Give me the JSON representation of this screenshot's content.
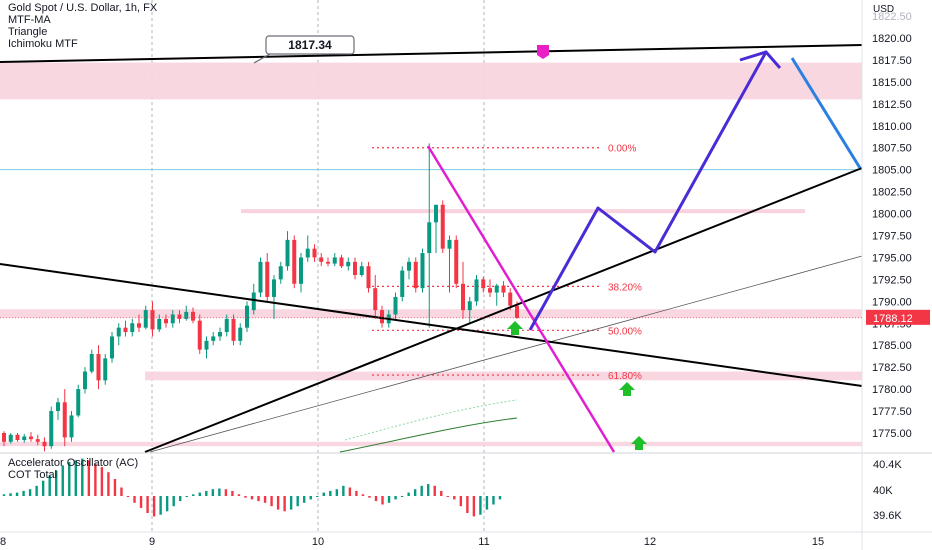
{
  "header": {
    "title": "Gold Spot / U.S. Dollar, 1h, FX",
    "indicators": [
      "MTF-MA",
      "Triangle",
      "Ichimoku MTF"
    ],
    "currency": "USD"
  },
  "oscillator": {
    "title": "Accelerator Oscillator (AC)",
    "subtitle": "COT Total"
  },
  "annotations": {
    "price_callout": "1817.34",
    "current_price": "1788.12"
  },
  "colors": {
    "bull": "#089981",
    "bear": "#f23645",
    "fib": "#f23645",
    "trendline": "#000000",
    "projection_blue": "#4a2bd6",
    "projection_light_blue": "#2a7fe0",
    "projection_magenta": "#e020d0",
    "zone_pink": "#f8d3de",
    "arrow_green": "#1fbf2a",
    "marker_magenta": "#e91ec7",
    "price_label": "#f23645"
  },
  "chart_data": [
    {
      "type": "candlestick",
      "title": "Gold Spot / U.S. Dollar, 1h, FX",
      "ylim": [
        1772.5,
        1823.5
      ],
      "y_ticks": [
        "1822.50",
        "1820.00",
        "1817.50",
        "1815.00",
        "1812.50",
        "1810.00",
        "1807.50",
        "1805.00",
        "1802.50",
        "1800.00",
        "1797.50",
        "1795.00",
        "1792.50",
        "1790.00",
        "1787.50",
        "1785.00",
        "1782.50",
        "1780.00",
        "1777.50",
        "1775.00"
      ],
      "x_ticks": [
        "8",
        "9",
        "10",
        "11",
        "12",
        "15"
      ],
      "xlim": [
        8,
        15.25
      ],
      "current_price": 1788.12,
      "ohlc": [
        [
          1775.0,
          1775.2,
          1773.5,
          1774.0
        ],
        [
          1774.0,
          1775.0,
          1773.8,
          1774.8
        ],
        [
          1774.8,
          1775.0,
          1774.0,
          1774.2
        ],
        [
          1774.2,
          1774.9,
          1773.9,
          1774.6
        ],
        [
          1774.6,
          1775.1,
          1774.0,
          1774.3
        ],
        [
          1774.3,
          1774.8,
          1773.6,
          1774.0
        ],
        [
          1774.0,
          1774.5,
          1772.9,
          1773.5
        ],
        [
          1773.5,
          1778.0,
          1773.2,
          1777.5
        ],
        [
          1777.5,
          1779.0,
          1776.5,
          1778.5
        ],
        [
          1778.5,
          1780.0,
          1773.5,
          1774.5
        ],
        [
          1774.5,
          1777.5,
          1774.0,
          1777.0
        ],
        [
          1777.0,
          1780.5,
          1776.8,
          1780.0
        ],
        [
          1780.0,
          1782.5,
          1779.5,
          1782.0
        ],
        [
          1782.0,
          1784.5,
          1781.8,
          1784.0
        ],
        [
          1784.0,
          1785.0,
          1780.0,
          1781.0
        ],
        [
          1781.0,
          1784.0,
          1780.5,
          1783.5
        ],
        [
          1783.5,
          1786.5,
          1783.0,
          1786.0
        ],
        [
          1786.0,
          1787.5,
          1785.0,
          1787.0
        ],
        [
          1787.0,
          1787.8,
          1786.0,
          1786.5
        ],
        [
          1786.5,
          1788.0,
          1786.0,
          1787.5
        ],
        [
          1787.5,
          1788.5,
          1786.5,
          1787.0
        ],
        [
          1787.0,
          1789.5,
          1786.8,
          1789.0
        ],
        [
          1789.0,
          1790.0,
          1786.0,
          1786.8
        ],
        [
          1786.8,
          1788.5,
          1786.5,
          1788.0
        ],
        [
          1788.0,
          1788.5,
          1787.0,
          1787.5
        ],
        [
          1787.5,
          1789.0,
          1787.0,
          1788.5
        ],
        [
          1788.5,
          1789.0,
          1787.5,
          1788.0
        ],
        [
          1788.0,
          1789.5,
          1787.8,
          1788.8
        ],
        [
          1788.8,
          1789.3,
          1787.5,
          1787.8
        ],
        [
          1787.8,
          1788.5,
          1784.0,
          1784.5
        ],
        [
          1784.5,
          1786.0,
          1783.5,
          1785.5
        ],
        [
          1785.5,
          1786.5,
          1785.0,
          1786.0
        ],
        [
          1786.0,
          1787.0,
          1785.5,
          1786.5
        ],
        [
          1786.5,
          1788.5,
          1786.0,
          1788.0
        ],
        [
          1788.0,
          1788.5,
          1785.0,
          1785.5
        ],
        [
          1785.5,
          1787.5,
          1785.0,
          1787.0
        ],
        [
          1787.0,
          1790.0,
          1786.5,
          1789.5
        ],
        [
          1789.0,
          1792.0,
          1788.5,
          1791.0
        ],
        [
          1791.0,
          1795.0,
          1790.5,
          1794.5
        ],
        [
          1794.5,
          1795.5,
          1790.0,
          1790.5
        ],
        [
          1790.5,
          1793.0,
          1788.0,
          1792.5
        ],
        [
          1792.5,
          1794.5,
          1792.0,
          1794.0
        ],
        [
          1794.0,
          1798.0,
          1793.5,
          1797.0
        ],
        [
          1797.0,
          1797.5,
          1791.5,
          1792.0
        ],
        [
          1792.0,
          1795.5,
          1791.0,
          1795.0
        ],
        [
          1795.0,
          1797.5,
          1794.5,
          1796.0
        ],
        [
          1796.0,
          1796.5,
          1794.5,
          1795.0
        ],
        [
          1795.0,
          1795.5,
          1794.0,
          1794.5
        ],
        [
          1794.5,
          1795.0,
          1794.0,
          1794.3
        ],
        [
          1794.3,
          1795.5,
          1794.0,
          1795.0
        ],
        [
          1795.0,
          1795.3,
          1793.8,
          1794.0
        ],
        [
          1794.0,
          1795.0,
          1793.5,
          1794.5
        ],
        [
          1794.5,
          1795.0,
          1792.5,
          1793.0
        ],
        [
          1793.0,
          1794.5,
          1792.8,
          1794.0
        ],
        [
          1794.0,
          1794.5,
          1791.0,
          1791.5
        ],
        [
          1791.5,
          1793.0,
          1788.0,
          1789.0
        ],
        [
          1789.0,
          1789.5,
          1787.0,
          1787.5
        ],
        [
          1787.5,
          1789.0,
          1787.0,
          1788.5
        ],
        [
          1788.5,
          1791.0,
          1788.0,
          1790.5
        ],
        [
          1790.5,
          1794.0,
          1790.0,
          1793.5
        ],
        [
          1793.5,
          1795.0,
          1792.5,
          1794.5
        ],
        [
          1794.5,
          1795.0,
          1791.0,
          1791.5
        ],
        [
          1791.5,
          1796.0,
          1791.0,
          1795.5
        ],
        [
          1795.5,
          1808.0,
          1787.0,
          1799.0
        ],
        [
          1799.0,
          1801.0,
          1795.5,
          1801.0
        ],
        [
          1801.0,
          1801.5,
          1795.5,
          1796.0
        ],
        [
          1796.0,
          1797.5,
          1791.0,
          1797.0
        ],
        [
          1797.0,
          1797.5,
          1791.5,
          1792.0
        ],
        [
          1792.0,
          1794.5,
          1788.0,
          1789.0
        ],
        [
          1789.0,
          1790.5,
          1787.5,
          1790.0
        ],
        [
          1790.0,
          1793.0,
          1789.5,
          1792.5
        ],
        [
          1792.5,
          1792.8,
          1791.0,
          1791.5
        ],
        [
          1791.5,
          1792.5,
          1790.5,
          1791.0
        ],
        [
          1791.0,
          1792.0,
          1789.5,
          1791.8
        ],
        [
          1791.8,
          1792.3,
          1790.5,
          1791.0
        ],
        [
          1791.0,
          1791.5,
          1789.0,
          1789.5
        ],
        [
          1789.5,
          1790.0,
          1788.0,
          1788.12
        ]
      ],
      "levels": {
        "fibonacci": [
          {
            "label": "0.00%",
            "value": 1807.5
          },
          {
            "label": "38.20%",
            "value": 1791.7
          },
          {
            "label": "50.00%",
            "value": 1786.7
          },
          {
            "label": "61.80%",
            "value": 1781.6
          }
        ],
        "price_callout": 1817.34
      },
      "supply_demand_zones": [
        {
          "from": 1813.0,
          "to": 1817.2
        },
        {
          "from": 1788.1,
          "to": 1789.1
        },
        {
          "from": 1781.0,
          "to": 1782.0
        },
        {
          "from": 1773.5,
          "to": 1774.0
        }
      ],
      "horizontal_lines": [
        1805.0
      ],
      "projection_path": [
        {
          "x": 11.3,
          "y": 1787.0
        },
        {
          "x": 11.7,
          "y": 1800.5
        },
        {
          "x": 12.0,
          "y": 1796.0
        },
        {
          "x": 12.7,
          "y": 1818.0
        }
      ]
    },
    {
      "type": "bar",
      "title": "Accelerator Oscillator (AC)",
      "subtitle": "COT Total",
      "y_ticks": [
        "40.4K",
        "40K",
        "39.6K"
      ],
      "values": [
        0.05,
        0.08,
        0.1,
        0.15,
        0.2,
        0.3,
        0.45,
        0.6,
        0.75,
        0.9,
        1.0,
        1.05,
        1.1,
        1.05,
        0.95,
        0.85,
        0.7,
        0.5,
        0.25,
        0.0,
        -0.2,
        -0.35,
        -0.5,
        -0.6,
        -0.55,
        -0.45,
        -0.3,
        -0.15,
        0.0,
        0.05,
        0.1,
        0.15,
        0.2,
        0.22,
        0.2,
        0.15,
        0.05,
        -0.05,
        -0.1,
        -0.15,
        -0.2,
        -0.3,
        -0.4,
        -0.45,
        -0.4,
        -0.3,
        -0.2,
        -0.1,
        0.0,
        0.1,
        0.15,
        0.2,
        0.3,
        0.25,
        0.15,
        0.05,
        -0.05,
        -0.15,
        -0.25,
        -0.2,
        -0.1,
        0.0,
        0.1,
        0.2,
        0.3,
        0.35,
        0.3,
        0.15,
        0.0,
        -0.1,
        -0.3,
        -0.5,
        -0.6,
        -0.55,
        -0.4,
        -0.25,
        -0.1
      ]
    }
  ]
}
